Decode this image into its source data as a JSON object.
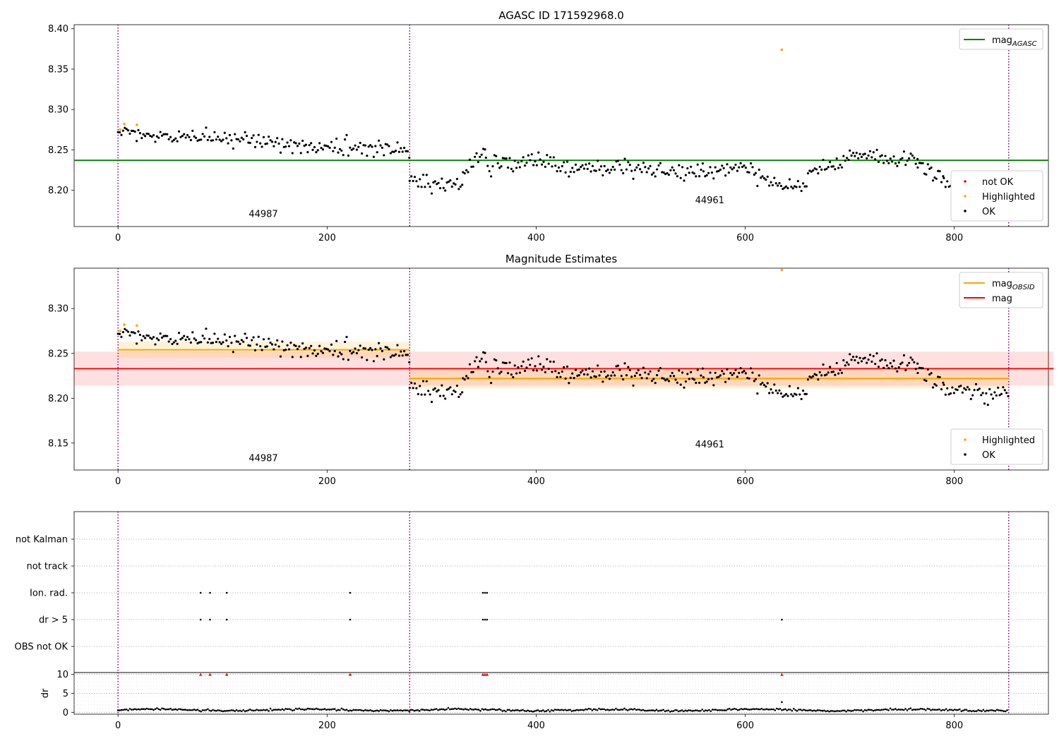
{
  "figure_title": "AGASC ID 171592968.0",
  "colors": {
    "ok": "#000000",
    "highlighted": "#ffa500",
    "not_ok": "#ff0000",
    "mag_agasc": "#008000",
    "mag_obsid": "#ffa500",
    "mag": "#ff0000",
    "obs_boundary": "#800080",
    "dr_flag": "#ff0000"
  },
  "chart_data": [
    {
      "type": "scatter",
      "title": "AGASC ID 171592968.0",
      "xlim": [
        -42,
        890
      ],
      "ylim": [
        8.155,
        8.405
      ],
      "xticks": [
        0,
        200,
        400,
        600,
        800
      ],
      "yticks": [
        8.2,
        8.25,
        8.3,
        8.35,
        8.4
      ],
      "ytick_labels": [
        "8.20",
        "8.25",
        "8.30",
        "8.35",
        "8.40"
      ],
      "grid": false,
      "obs_boundaries": [
        0,
        279,
        852
      ],
      "obs_labels": [
        {
          "text": "44987",
          "x": 139,
          "y": 8.167
        },
        {
          "text": "44961",
          "x": 566,
          "y": 8.184
        }
      ],
      "hlines": [
        {
          "name": "mag_AGASC",
          "value": 8.237,
          "x": [
            -42,
            890
          ]
        }
      ],
      "segments": [
        {
          "x0": 0,
          "x1": 279,
          "y0": 8.27,
          "y1": 8.249
        },
        {
          "x0": 279,
          "x1": 330,
          "y0": 8.212,
          "y1": 8.206
        },
        {
          "x0": 330,
          "x1": 352,
          "y0": 8.216,
          "y1": 8.25
        },
        {
          "x0": 352,
          "x1": 420,
          "y0": 8.23,
          "y1": 8.238
        },
        {
          "x0": 420,
          "x1": 560,
          "y0": 8.228,
          "y1": 8.222
        },
        {
          "x0": 560,
          "x1": 610,
          "y0": 8.222,
          "y1": 8.228
        },
        {
          "x0": 610,
          "x1": 660,
          "y0": 8.212,
          "y1": 8.206
        },
        {
          "x0": 660,
          "x1": 700,
          "y0": 8.222,
          "y1": 8.236
        },
        {
          "x0": 700,
          "x1": 765,
          "y0": 8.245,
          "y1": 8.235
        },
        {
          "x0": 765,
          "x1": 790,
          "y0": 8.228,
          "y1": 8.215
        },
        {
          "x0": 790,
          "x1": 852,
          "y0": 8.208,
          "y1": 8.203
        }
      ],
      "highlighted_points": [
        [
          2,
          8.275
        ],
        [
          6,
          8.282
        ],
        [
          18,
          8.281
        ],
        [
          635,
          8.374
        ]
      ],
      "legends": [
        {
          "position": "top-right",
          "entries": [
            {
              "kind": "line",
              "label": "mag",
              "sub": "AGASC",
              "color": "#008000"
            }
          ]
        },
        {
          "position": "bottom-right",
          "entries": [
            {
              "kind": "marker",
              "label": "not OK",
              "color": "#ff0000"
            },
            {
              "kind": "marker",
              "label": "Highlighted",
              "color": "#ffa500"
            },
            {
              "kind": "marker",
              "label": "OK",
              "color": "#000000"
            }
          ]
        }
      ]
    },
    {
      "type": "scatter",
      "title": "Magnitude Estimates",
      "xlim": [
        -42,
        890
      ],
      "ylim": [
        8.12,
        8.345
      ],
      "xticks": [
        0,
        200,
        400,
        600,
        800
      ],
      "yticks": [
        8.15,
        8.2,
        8.25,
        8.3
      ],
      "ytick_labels": [
        "8.15",
        "8.20",
        "8.25",
        "8.30"
      ],
      "grid": false,
      "obs_boundaries": [
        0,
        279,
        852
      ],
      "obs_labels": [
        {
          "text": "44987",
          "x": 139,
          "y": 8.13
        },
        {
          "text": "44961",
          "x": 566,
          "y": 8.145
        }
      ],
      "hlines": [
        {
          "name": "mag",
          "value": 8.233,
          "x": [
            -42,
            895
          ]
        }
      ],
      "bands": [
        {
          "name": "mag",
          "y0": 8.214,
          "y1": 8.252,
          "x": [
            -42,
            895
          ]
        }
      ],
      "obsid_mags": [
        {
          "x": [
            0,
            279
          ],
          "value": 8.254,
          "band": [
            8.245,
            8.263
          ]
        },
        {
          "x": [
            279,
            852
          ],
          "value": 8.222,
          "band": [
            8.211,
            8.234
          ]
        }
      ],
      "segments": [
        {
          "x0": 0,
          "x1": 279,
          "y0": 8.27,
          "y1": 8.249
        },
        {
          "x0": 279,
          "x1": 330,
          "y0": 8.212,
          "y1": 8.206
        },
        {
          "x0": 330,
          "x1": 352,
          "y0": 8.216,
          "y1": 8.25
        },
        {
          "x0": 352,
          "x1": 420,
          "y0": 8.23,
          "y1": 8.238
        },
        {
          "x0": 420,
          "x1": 560,
          "y0": 8.228,
          "y1": 8.222
        },
        {
          "x0": 560,
          "x1": 610,
          "y0": 8.222,
          "y1": 8.228
        },
        {
          "x0": 610,
          "x1": 660,
          "y0": 8.212,
          "y1": 8.206
        },
        {
          "x0": 660,
          "x1": 700,
          "y0": 8.222,
          "y1": 8.236
        },
        {
          "x0": 700,
          "x1": 765,
          "y0": 8.245,
          "y1": 8.235
        },
        {
          "x0": 765,
          "x1": 790,
          "y0": 8.228,
          "y1": 8.215
        },
        {
          "x0": 790,
          "x1": 852,
          "y0": 8.208,
          "y1": 8.203
        }
      ],
      "highlighted_points": [
        [
          2,
          8.275
        ],
        [
          6,
          8.282
        ],
        [
          18,
          8.281
        ],
        [
          635,
          8.343
        ]
      ],
      "legends": [
        {
          "position": "top-right",
          "entries": [
            {
              "kind": "line",
              "label": "mag",
              "sub": "OBSID",
              "color": "#ffa500"
            },
            {
              "kind": "line",
              "label": "mag",
              "sub": "",
              "color": "#ff0000"
            }
          ]
        },
        {
          "position": "bottom-right",
          "entries": [
            {
              "kind": "marker",
              "label": "Highlighted",
              "color": "#ffa500"
            },
            {
              "kind": "marker",
              "label": "OK",
              "color": "#000000"
            }
          ]
        }
      ]
    },
    {
      "type": "scatter",
      "title": "",
      "xlim": [
        -42,
        890
      ],
      "categories": [
        "not Kalman",
        "not track",
        "Ion. rad.",
        "dr > 5",
        "OBS not OK"
      ],
      "grid": true,
      "obs_boundaries": [
        0,
        279,
        852
      ],
      "flags": {
        "Ion. rad.": [
          79,
          88,
          104,
          222,
          349,
          351,
          353
        ],
        "dr > 5": [
          79,
          88,
          104,
          222,
          349,
          351,
          353,
          635
        ]
      }
    },
    {
      "type": "scatter",
      "title": "",
      "ylabel": "dr",
      "xlim": [
        -42,
        890
      ],
      "ylim": [
        -0.5,
        10.5
      ],
      "yticks": [
        0,
        5,
        10
      ],
      "ytick_labels": [
        "0",
        "5",
        "10"
      ],
      "xticks": [
        0,
        200,
        400,
        600,
        800
      ],
      "grid": true,
      "obs_boundaries": [
        0,
        279,
        852
      ],
      "baseline_dr": 0.6,
      "clipped_points": [
        79,
        88,
        104,
        222,
        349,
        351,
        353,
        635
      ],
      "extra_points": [
        [
          635,
          2.7
        ]
      ]
    }
  ]
}
